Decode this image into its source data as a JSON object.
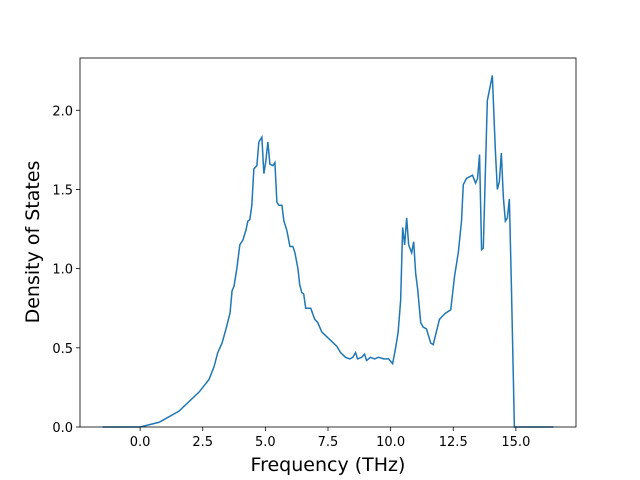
{
  "chart_data": {
    "type": "line",
    "xlabel": "Frequency (THz)",
    "ylabel": "Density of States",
    "x": [
      -1.5,
      0,
      0.76,
      1.55,
      2.35,
      2.75,
      2.95,
      3.1,
      3.27,
      3.43,
      3.59,
      3.67,
      3.75,
      3.86,
      3.98,
      4.1,
      4.22,
      4.3,
      4.38,
      4.46,
      4.54,
      4.66,
      4.74,
      4.86,
      4.94,
      5.02,
      5.1,
      5.18,
      5.3,
      5.38,
      5.46,
      5.54,
      5.66,
      5.74,
      5.86,
      5.98,
      6.1,
      6.18,
      6.3,
      6.37,
      6.45,
      6.53,
      6.61,
      6.81,
      6.97,
      7.09,
      7.25,
      7.45,
      7.65,
      7.85,
      8.0,
      8.2,
      8.37,
      8.49,
      8.6,
      8.68,
      8.84,
      8.96,
      9.04,
      9.2,
      9.36,
      9.52,
      9.72,
      9.92,
      10.08,
      10.2,
      10.3,
      10.4,
      10.48,
      10.56,
      10.64,
      10.72,
      10.84,
      10.92,
      11.0,
      11.08,
      11.2,
      11.3,
      11.43,
      11.6,
      11.7,
      11.95,
      12.07,
      12.2,
      12.4,
      12.55,
      12.7,
      12.83,
      12.9,
      13.03,
      13.27,
      13.39,
      13.47,
      13.55,
      13.63,
      13.7,
      13.86,
      14.06,
      14.18,
      14.26,
      14.34,
      14.42,
      14.5,
      14.58,
      14.66,
      14.74,
      14.82,
      14.94,
      16.5
    ],
    "series": [
      {
        "color": "#1f77b4",
        "values": [
          0,
          0,
          0.03,
          0.1,
          0.22,
          0.3,
          0.38,
          0.47,
          0.53,
          0.62,
          0.72,
          0.86,
          0.89,
          1.0,
          1.15,
          1.18,
          1.24,
          1.3,
          1.31,
          1.4,
          1.63,
          1.65,
          1.8,
          1.83,
          1.6,
          1.68,
          1.8,
          1.66,
          1.65,
          1.67,
          1.42,
          1.4,
          1.4,
          1.3,
          1.24,
          1.14,
          1.14,
          1.1,
          1.0,
          0.9,
          0.85,
          0.84,
          0.75,
          0.75,
          0.68,
          0.66,
          0.6,
          0.57,
          0.54,
          0.51,
          0.47,
          0.44,
          0.43,
          0.44,
          0.47,
          0.43,
          0.44,
          0.46,
          0.42,
          0.44,
          0.43,
          0.44,
          0.43,
          0.43,
          0.4,
          0.5,
          0.6,
          0.8,
          1.26,
          1.15,
          1.32,
          1.15,
          1.1,
          1.17,
          0.97,
          0.87,
          0.66,
          0.63,
          0.62,
          0.53,
          0.52,
          0.68,
          0.7,
          0.72,
          0.74,
          0.95,
          1.1,
          1.3,
          1.53,
          1.57,
          1.59,
          1.54,
          1.57,
          1.72,
          1.12,
          1.13,
          2.06,
          2.22,
          1.75,
          1.5,
          1.55,
          1.73,
          1.45,
          1.3,
          1.32,
          1.44,
          0.9,
          0,
          0
        ]
      }
    ],
    "xlim": [
      -2.4,
      17.4
    ],
    "xticks": [
      {
        "value": 0,
        "label": "0.0"
      },
      2.5,
      {
        "value": 5,
        "label": "5.0"
      },
      7.5,
      {
        "value": 10,
        "label": "10.0"
      },
      12.5,
      {
        "value": 15,
        "label": "15.0"
      }
    ],
    "ylim": [
      0,
      2.33
    ],
    "yticks": [
      {
        "value": 0,
        "label": "0.0"
      },
      0.5,
      {
        "value": 1,
        "label": "1.0"
      },
      1.5,
      {
        "value": 2,
        "label": "2.0"
      }
    ]
  }
}
